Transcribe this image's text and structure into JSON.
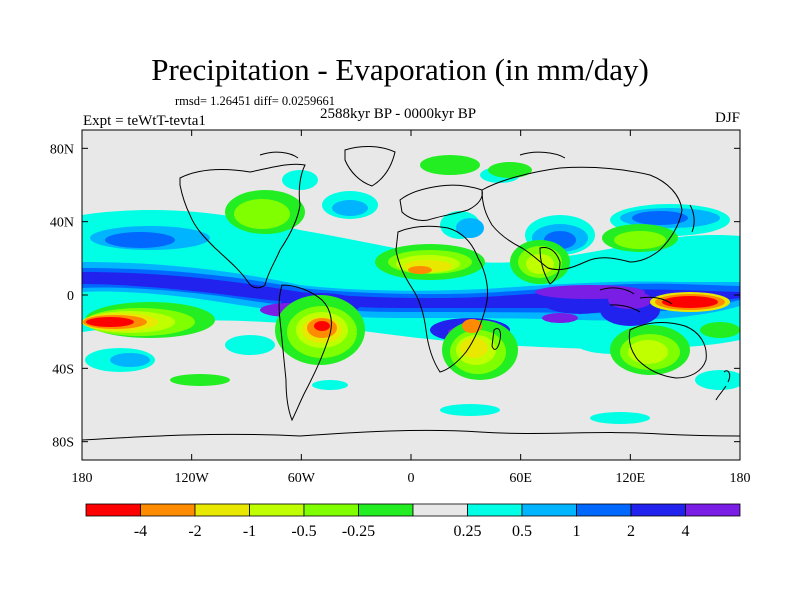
{
  "figure": {
    "title": "Precipitation - Evaporation (in mm/day)",
    "stats_text": "rmsd= 1.26451 diff= 0.0259661",
    "period_text": "2588kyr BP - 0000kyr BP",
    "experiment_text": "Expt = teWtT-tevta1",
    "season_text": "DJF"
  },
  "map": {
    "projection": "cylindrical-equidistant",
    "lon_range": [
      -180,
      180
    ],
    "lat_range": [
      -90,
      90
    ],
    "background_color": "#e8e8e8",
    "coast_color": "#000000",
    "x_ticks": [
      {
        "value": -180,
        "label": "180"
      },
      {
        "value": -120,
        "label": "120W"
      },
      {
        "value": -60,
        "label": "60W"
      },
      {
        "value": 0,
        "label": "0"
      },
      {
        "value": 60,
        "label": "60E"
      },
      {
        "value": 120,
        "label": "120E"
      },
      {
        "value": 180,
        "label": "180"
      }
    ],
    "y_ticks": [
      {
        "value": 80,
        "label": "80N"
      },
      {
        "value": 40,
        "label": "40N"
      },
      {
        "value": 0,
        "label": "0"
      },
      {
        "value": -40,
        "label": "40S"
      },
      {
        "value": -80,
        "label": "80S"
      }
    ]
  },
  "colorbar": {
    "colors": [
      "#ff0000",
      "#ff8c00",
      "#e8e800",
      "#bfff00",
      "#80ff00",
      "#22ee22",
      "#e8e8e8",
      "#00ffe4",
      "#00b4ff",
      "#0068ff",
      "#2222ee",
      "#7a1ee6"
    ],
    "labels": [
      "-4",
      "-2",
      "-1",
      "-0.5",
      "-0.25",
      "0.25",
      "0.5",
      "1",
      "2",
      "4"
    ]
  }
}
